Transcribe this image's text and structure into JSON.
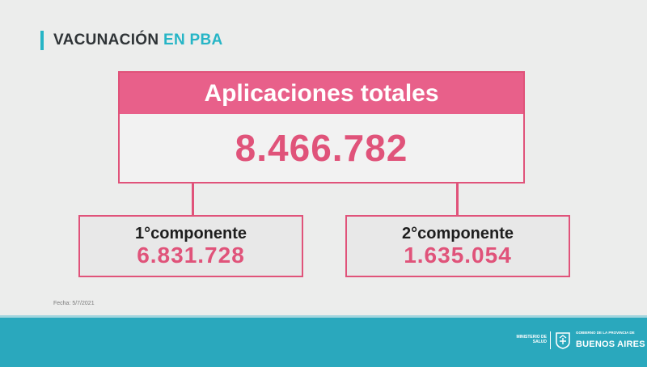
{
  "header": {
    "title_part1": "VACUNACIÓN",
    "title_part2": "EN PBA"
  },
  "total": {
    "label": "Aplicaciones totales",
    "value": "8.466.782"
  },
  "components": [
    {
      "label": "1°componente",
      "value": "6.831.728"
    },
    {
      "label": "2°componente",
      "value": "1.635.054"
    }
  ],
  "date_note": "Fecha: 5/7/2021",
  "footer": {
    "ministry_line1": "MINISTERIO DE",
    "ministry_line2": "SALUD",
    "gov_small": "GOBIERNO DE LA PROVINCIA DE",
    "gov_big": "BUENOS AIRES"
  },
  "colors": {
    "accent_pink": "#e0537a",
    "accent_teal": "#26b5c6"
  }
}
